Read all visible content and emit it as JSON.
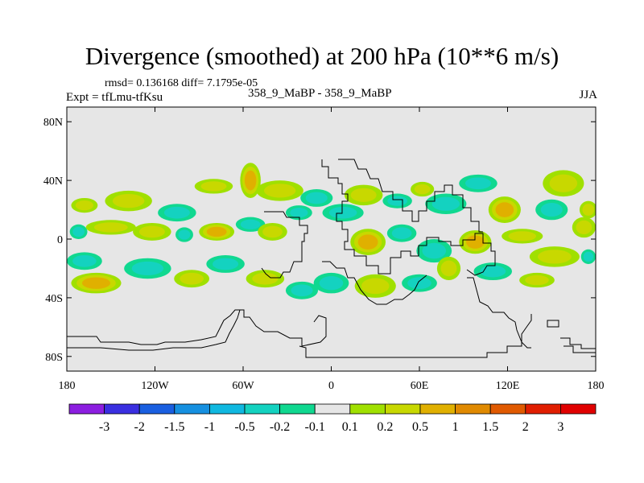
{
  "title": "Divergence (smoothed) at 200 hPa (10**6 m/s)",
  "stats": "rmsd= 0.136168 diff= 7.1795e-05",
  "expt": "Expt = tfLmu-tfKsu",
  "center_label": "358_9_MaBP - 358_9_MaBP",
  "season": "JJA",
  "chart_data": {
    "type": "heatmap",
    "title": "Divergence (smoothed) at 200 hPa (10**6 m/s)",
    "x_range": [
      -180,
      180
    ],
    "y_range": [
      -90,
      90
    ],
    "x_ticks": [
      {
        "value": -180,
        "label": "180"
      },
      {
        "value": -120,
        "label": "120W"
      },
      {
        "value": -60,
        "label": "60W"
      },
      {
        "value": 0,
        "label": "0"
      },
      {
        "value": 60,
        "label": "60E"
      },
      {
        "value": 120,
        "label": "120E"
      },
      {
        "value": 180,
        "label": "180"
      }
    ],
    "y_ticks": [
      {
        "value": 80,
        "label": "80N"
      },
      {
        "value": 40,
        "label": "40N"
      },
      {
        "value": 0,
        "label": "0"
      },
      {
        "value": -40,
        "label": "40S"
      },
      {
        "value": -80,
        "label": "80S"
      }
    ],
    "levels": [
      "-3",
      "-2",
      "-1.5",
      "-1",
      "-0.5",
      "-0.2",
      "-0.1",
      "0.1",
      "0.2",
      "0.5",
      "1",
      "1.5",
      "2",
      "3"
    ],
    "colorbar_colors": [
      "#8c1ee0",
      "#3a2fe0",
      "#1a5fe0",
      "#1690e0",
      "#10b8e0",
      "#14d2c0",
      "#10d890",
      "#e6e6e6",
      "#a0e000",
      "#c8d800",
      "#e0b000",
      "#e08a00",
      "#e05a00",
      "#e01e00",
      "#e00000"
    ],
    "blobs": [
      {
        "lon": -168,
        "lat": 23,
        "rx": 9,
        "ry": 5,
        "v": 0.2
      },
      {
        "lon": -138,
        "lat": 26,
        "rx": 16,
        "ry": 7,
        "v": 0.3
      },
      {
        "lon": -105,
        "lat": 18,
        "rx": 13,
        "ry": 6,
        "v": -0.3
      },
      {
        "lon": -80,
        "lat": 36,
        "rx": 13,
        "ry": 5,
        "v": 0.2
      },
      {
        "lon": -55,
        "lat": 40,
        "rx": 7,
        "ry": 12,
        "v": 0.5
      },
      {
        "lon": -35,
        "lat": 33,
        "rx": 16,
        "ry": 7,
        "v": 0.3
      },
      {
        "lon": -10,
        "lat": 28,
        "rx": 11,
        "ry": 6,
        "v": -0.3
      },
      {
        "lon": 22,
        "lat": 30,
        "rx": 13,
        "ry": 7,
        "v": 0.3
      },
      {
        "lon": 45,
        "lat": 26,
        "rx": 10,
        "ry": 5,
        "v": -0.2
      },
      {
        "lon": 62,
        "lat": 34,
        "rx": 8,
        "ry": 5,
        "v": 0.2
      },
      {
        "lon": 78,
        "lat": 24,
        "rx": 14,
        "ry": 7,
        "v": -0.3
      },
      {
        "lon": 100,
        "lat": 38,
        "rx": 13,
        "ry": 6,
        "v": -0.4
      },
      {
        "lon": 118,
        "lat": 20,
        "rx": 11,
        "ry": 9,
        "v": 0.6
      },
      {
        "lon": 150,
        "lat": 20,
        "rx": 11,
        "ry": 7,
        "v": -0.3
      },
      {
        "lon": 158,
        "lat": 38,
        "rx": 14,
        "ry": 9,
        "v": 0.4
      },
      {
        "lon": 175,
        "lat": 20,
        "rx": 6,
        "ry": 6,
        "v": 0.2
      },
      {
        "lon": -172,
        "lat": 5,
        "rx": 6,
        "ry": 5,
        "v": -0.3
      },
      {
        "lon": -150,
        "lat": 8,
        "rx": 17,
        "ry": 5,
        "v": 0.4
      },
      {
        "lon": -122,
        "lat": 5,
        "rx": 13,
        "ry": 6,
        "v": 0.3
      },
      {
        "lon": -100,
        "lat": 3,
        "rx": 6,
        "ry": 5,
        "v": -0.2
      },
      {
        "lon": -78,
        "lat": 5,
        "rx": 12,
        "ry": 6,
        "v": 0.5
      },
      {
        "lon": -55,
        "lat": 10,
        "rx": 10,
        "ry": 5,
        "v": -0.3
      },
      {
        "lon": -40,
        "lat": 5,
        "rx": 10,
        "ry": 6,
        "v": 0.3
      },
      {
        "lon": -22,
        "lat": 18,
        "rx": 9,
        "ry": 5,
        "v": -0.2
      },
      {
        "lon": 8,
        "lat": 18,
        "rx": 14,
        "ry": 6,
        "v": -0.2
      },
      {
        "lon": 25,
        "lat": -2,
        "rx": 12,
        "ry": 9,
        "v": 0.6
      },
      {
        "lon": 48,
        "lat": 4,
        "rx": 10,
        "ry": 6,
        "v": -0.3
      },
      {
        "lon": 70,
        "lat": -8,
        "rx": 12,
        "ry": 8,
        "v": -0.3
      },
      {
        "lon": 98,
        "lat": -2,
        "rx": 11,
        "ry": 8,
        "v": 0.8
      },
      {
        "lon": 130,
        "lat": 2,
        "rx": 14,
        "ry": 5,
        "v": 0.2
      },
      {
        "lon": 152,
        "lat": -12,
        "rx": 17,
        "ry": 7,
        "v": 0.3
      },
      {
        "lon": 172,
        "lat": 8,
        "rx": 8,
        "ry": 7,
        "v": 0.3
      },
      {
        "lon": -168,
        "lat": -15,
        "rx": 12,
        "ry": 6,
        "v": -0.3
      },
      {
        "lon": -160,
        "lat": -30,
        "rx": 17,
        "ry": 7,
        "v": 0.5
      },
      {
        "lon": -125,
        "lat": -20,
        "rx": 16,
        "ry": 7,
        "v": -0.3
      },
      {
        "lon": -95,
        "lat": -27,
        "rx": 12,
        "ry": 6,
        "v": 0.3
      },
      {
        "lon": -72,
        "lat": -17,
        "rx": 13,
        "ry": 6,
        "v": -0.3
      },
      {
        "lon": -45,
        "lat": -27,
        "rx": 13,
        "ry": 6,
        "v": 0.2
      },
      {
        "lon": -20,
        "lat": -35,
        "rx": 11,
        "ry": 6,
        "v": -0.3
      },
      {
        "lon": 0,
        "lat": -30,
        "rx": 12,
        "ry": 7,
        "v": -0.2
      },
      {
        "lon": 30,
        "lat": -32,
        "rx": 14,
        "ry": 8,
        "v": 0.4
      },
      {
        "lon": 60,
        "lat": -30,
        "rx": 12,
        "ry": 6,
        "v": -0.2
      },
      {
        "lon": 80,
        "lat": -20,
        "rx": 8,
        "ry": 8,
        "v": 0.3
      },
      {
        "lon": 110,
        "lat": -22,
        "rx": 13,
        "ry": 6,
        "v": -0.2
      },
      {
        "lon": 140,
        "lat": -28,
        "rx": 12,
        "ry": 5,
        "v": 0.3
      },
      {
        "lon": 175,
        "lat": -12,
        "rx": 5,
        "ry": 5,
        "v": -0.2
      }
    ]
  }
}
